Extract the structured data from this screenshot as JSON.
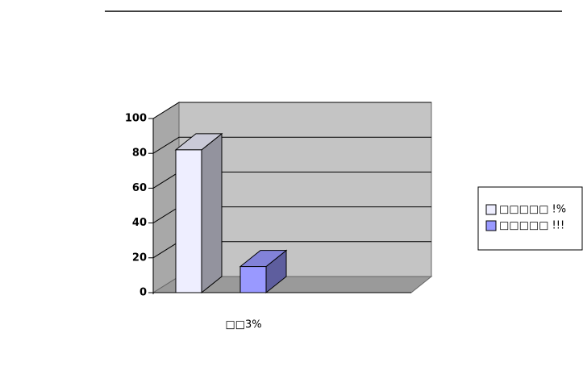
{
  "chart_data": {
    "type": "bar3d",
    "categories": [
      "□□3%"
    ],
    "series": [
      {
        "name": "□□□□□ !%",
        "color": "#eeeeff",
        "values": [
          82
        ]
      },
      {
        "name": "□□□□□ !!!",
        "color": "#9999ff",
        "values": [
          15
        ]
      }
    ],
    "ylim": [
      0,
      100
    ],
    "yticks": [
      0,
      20,
      40,
      60,
      80,
      100
    ],
    "grid": true,
    "legend": "right"
  }
}
